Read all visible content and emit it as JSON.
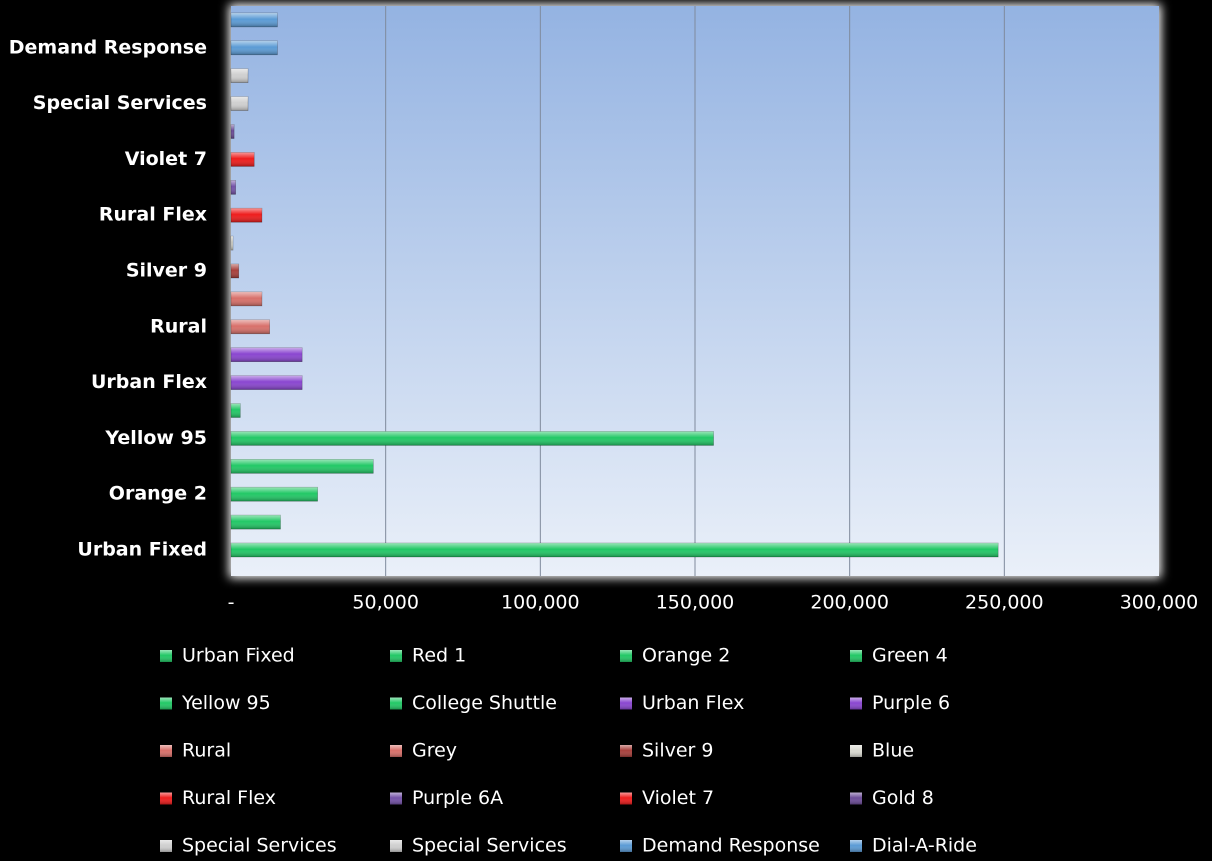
{
  "chart_data": {
    "type": "bar",
    "orientation": "horizontal",
    "categories": [
      "Urban Fixed",
      null,
      "Orange 2",
      null,
      "Yellow 95",
      null,
      "Urban Flex",
      null,
      "Rural",
      null,
      "Silver 9",
      null,
      "Rural Flex",
      null,
      "Violet 7",
      null,
      "Special Services",
      null,
      "Demand Response",
      null
    ],
    "values": [
      248000,
      16000,
      28000,
      46000,
      156000,
      3000,
      23000,
      23000,
      12500,
      10000,
      2500,
      500,
      10000,
      1500,
      7500,
      1000,
      5500,
      5500,
      15000,
      15000
    ],
    "colors": [
      "#22c866",
      "#22c866",
      "#22c866",
      "#22c866",
      "#22c866",
      "#22c866",
      "#8a46d0",
      "#8a46d0",
      "#d8706a",
      "#d8706a",
      "#a8403c",
      "#d8d8d0",
      "#ee1c1c",
      "#7452a8",
      "#ee1c1c",
      "#6c4c98",
      "#cfcfcf",
      "#cfcfcf",
      "#5b9bd5",
      "#5b9bd5"
    ],
    "legend": [
      "Urban Fixed",
      "Red 1",
      "Orange 2",
      "Green 4",
      "Yellow 95",
      "College Shuttle",
      "Urban Flex",
      "Purple 6",
      "Rural",
      "Grey",
      "Silver 9",
      "Blue",
      "Rural Flex",
      "Purple 6A",
      "Violet 7",
      "Gold 8",
      "Special Services",
      "Special Services",
      "Demand Response",
      "Dial-A-Ride"
    ],
    "xlim": [
      0,
      300000
    ],
    "xticks": [
      {
        "value": 0,
        "label": "-"
      },
      {
        "value": 50000,
        "label": "50,000"
      },
      {
        "value": 100000,
        "label": "100,000"
      },
      {
        "value": 150000,
        "label": "150,000"
      },
      {
        "value": 200000,
        "label": "200,000"
      },
      {
        "value": 250000,
        "label": "250,000"
      },
      {
        "value": 300000,
        "label": "300,000"
      }
    ],
    "grid": true
  }
}
